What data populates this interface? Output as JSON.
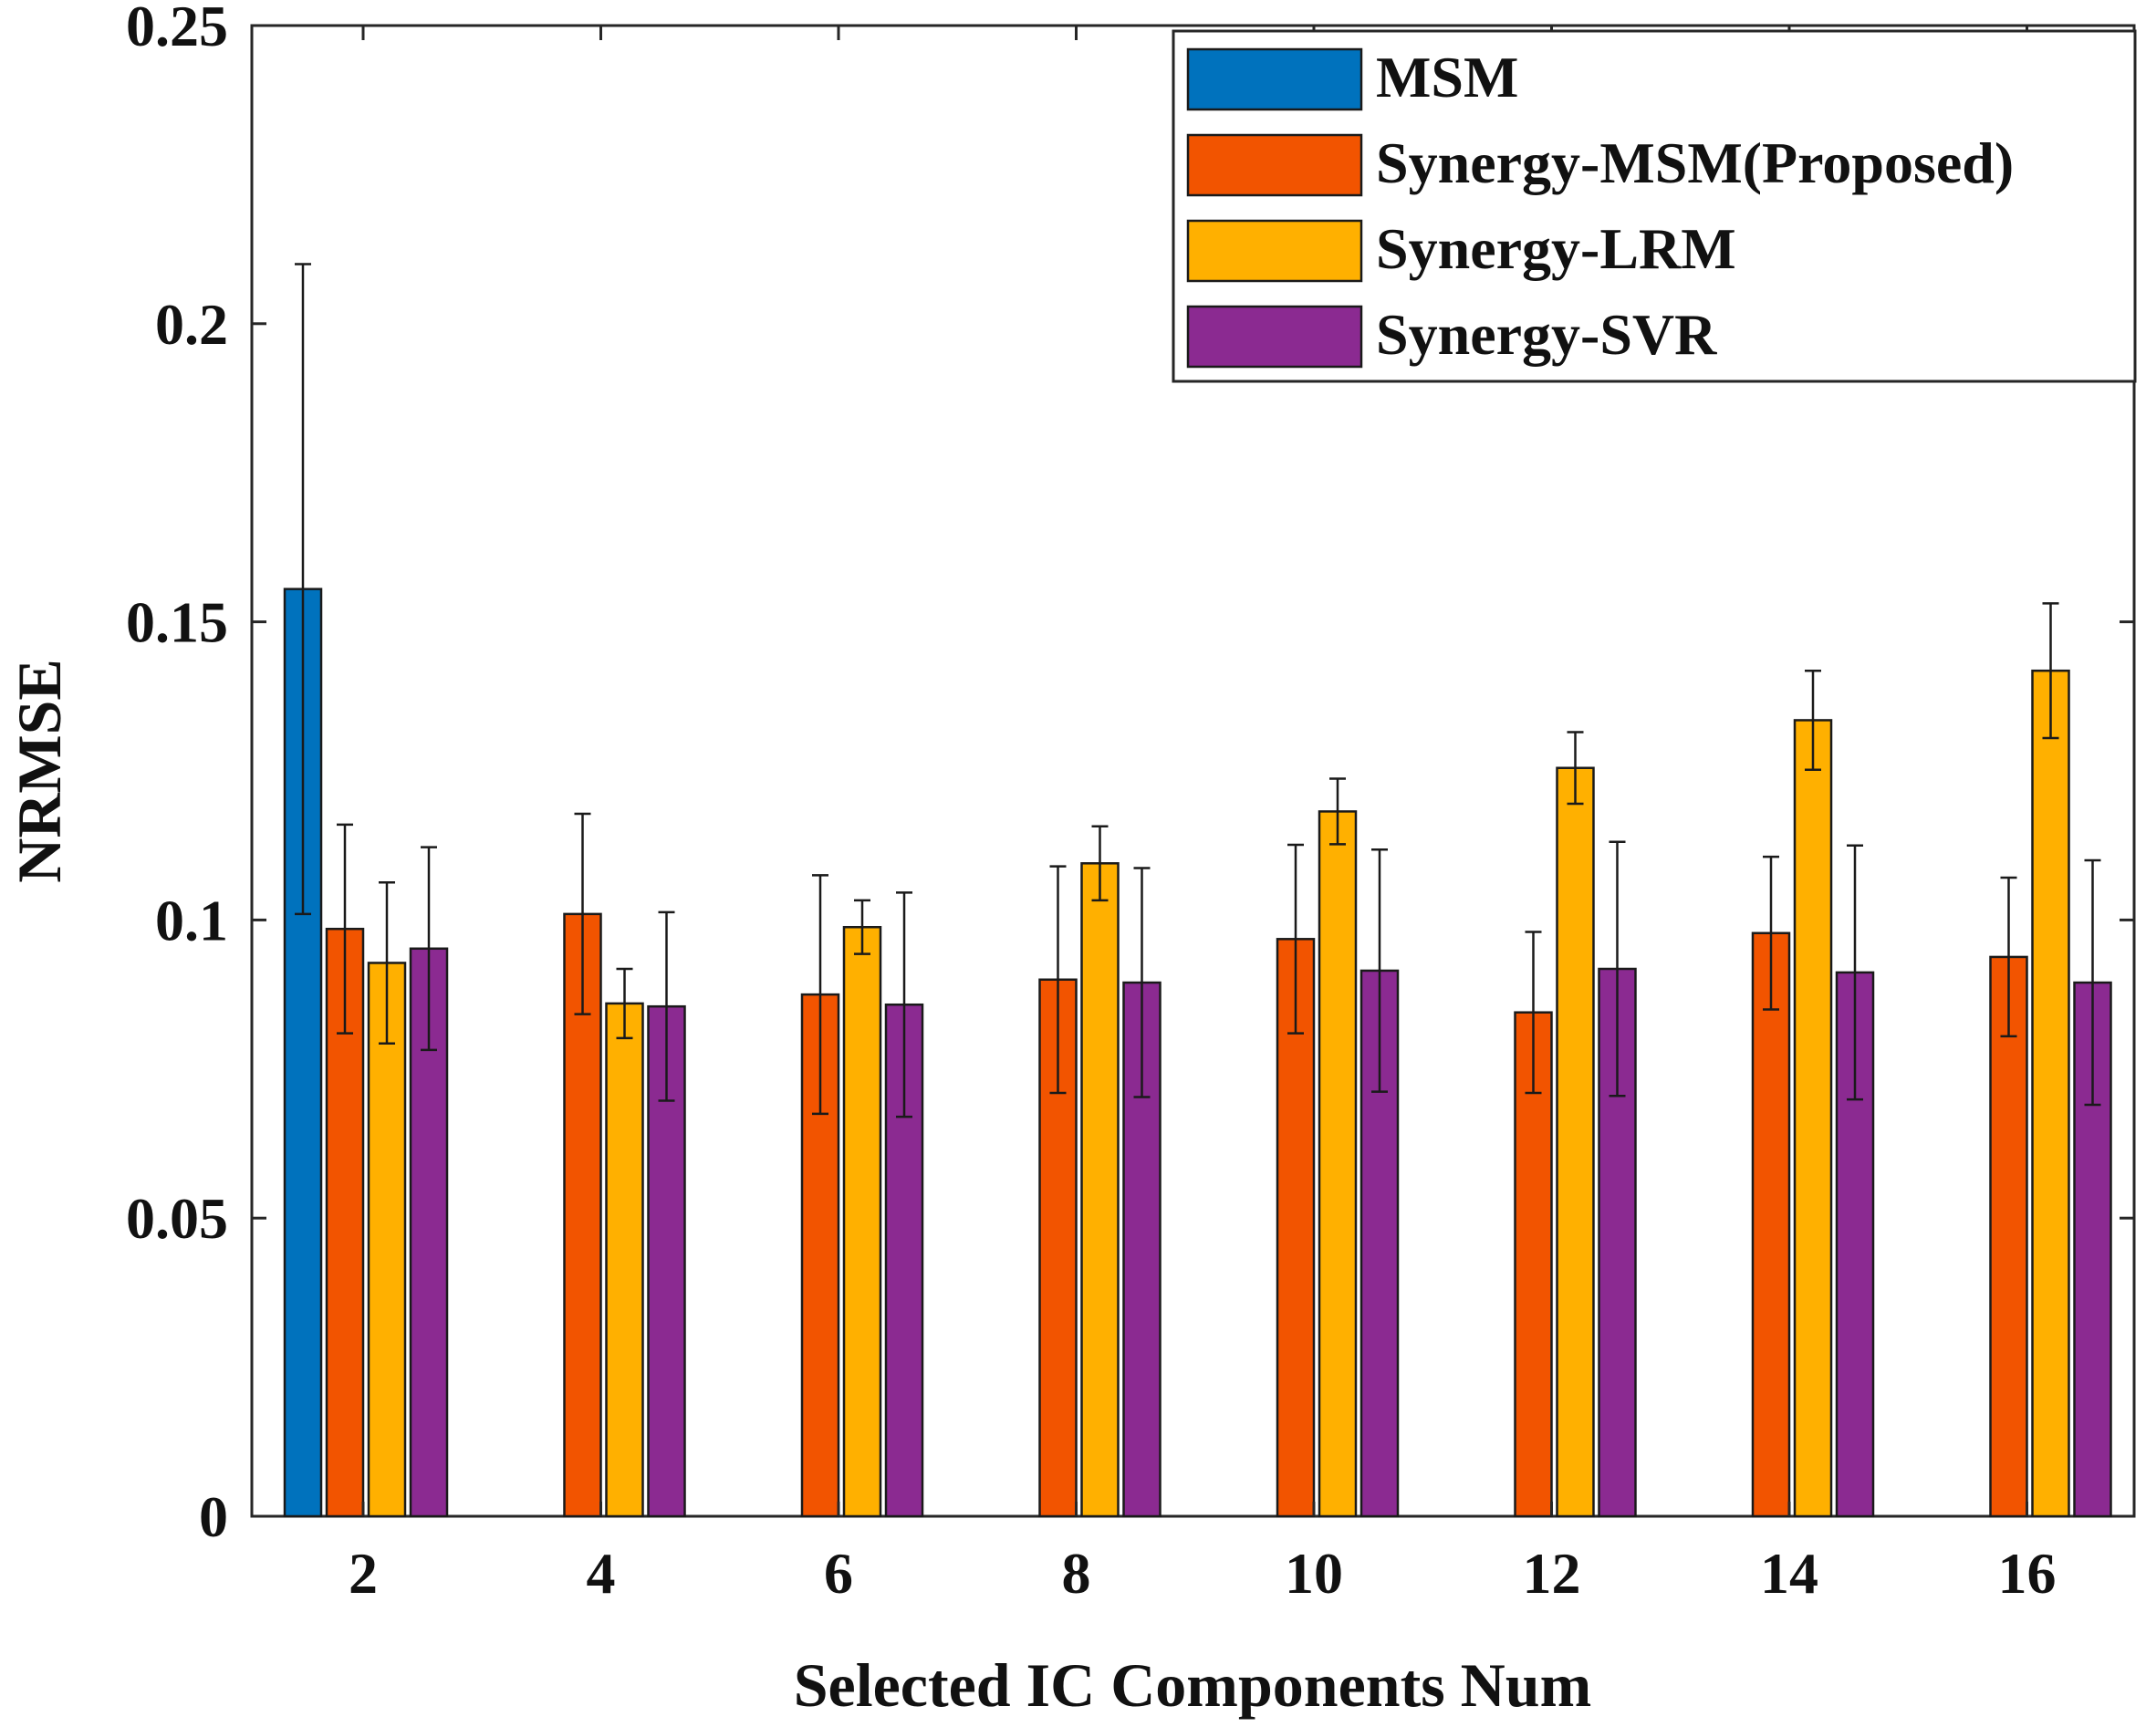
{
  "chart_data": {
    "type": "bar",
    "title": "",
    "xlabel": "Selected IC Components Num",
    "ylabel": "NRMSE",
    "categories": [
      "2",
      "4",
      "6",
      "8",
      "10",
      "12",
      "14",
      "16"
    ],
    "ylim": [
      0,
      0.25
    ],
    "yticks": [
      0,
      0.05,
      0.1,
      0.15,
      0.2,
      0.25
    ],
    "ytick_labels": [
      "0",
      "0.05",
      "0.1",
      "0.15",
      "0.2",
      "0.25"
    ],
    "grid": false,
    "legend_position": "top-right",
    "series": [
      {
        "name": "MSM",
        "color": "#0072BD",
        "values": [
          0.1555,
          0,
          0,
          0,
          0,
          0,
          0,
          0
        ],
        "errors": [
          0.0545,
          0,
          0,
          0,
          0,
          0,
          0,
          0
        ]
      },
      {
        "name": "Synergy-MSM(Proposed)",
        "color": "#F25400",
        "values": [
          0.0985,
          0.101,
          0.0875,
          0.09,
          0.0968,
          0.0845,
          0.0978,
          0.0938
        ],
        "errors": [
          0.0175,
          0.0168,
          0.02,
          0.019,
          0.0158,
          0.0135,
          0.0128,
          0.0133
        ]
      },
      {
        "name": "Synergy-LRM",
        "color": "#FFB000",
        "values": [
          0.0928,
          0.086,
          0.0988,
          0.1095,
          0.1182,
          0.1255,
          0.1335,
          0.1418
        ],
        "errors": [
          0.0135,
          0.0058,
          0.0045,
          0.0062,
          0.0055,
          0.006,
          0.0083,
          0.0113
        ]
      },
      {
        "name": "Synergy-SVR",
        "color": "#8B2A91",
        "values": [
          0.0952,
          0.0855,
          0.0858,
          0.0895,
          0.0915,
          0.0918,
          0.0912,
          0.0895
        ],
        "errors": [
          0.017,
          0.0158,
          0.0188,
          0.0192,
          0.0203,
          0.0213,
          0.0213,
          0.0205
        ]
      }
    ]
  }
}
